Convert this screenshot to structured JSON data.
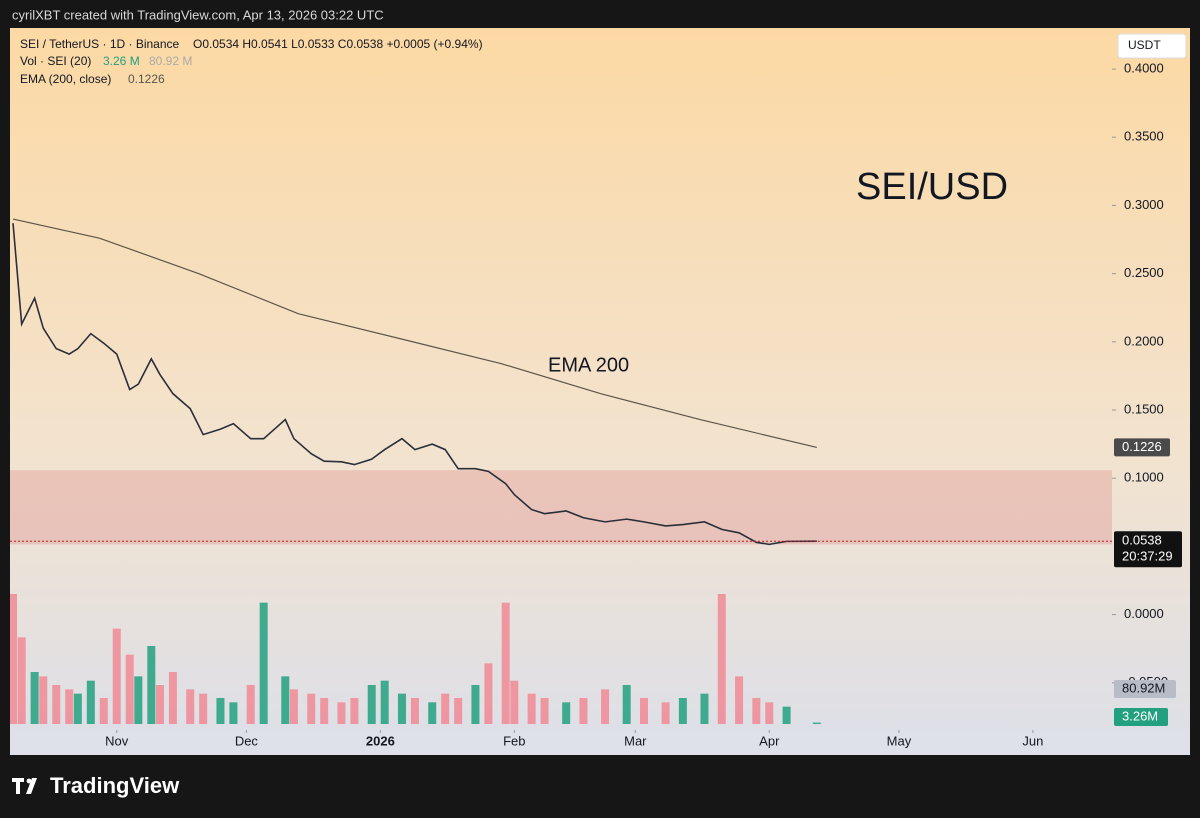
{
  "header": {
    "credit": "cyrilXBT created with TradingView.com, Apr 13, 2026 03:22 UTC",
    "brand": "TradingView"
  },
  "chart_data": {
    "type": "line",
    "legend": {
      "symbol": "SEI / TetherUS · 1D · Binance",
      "ohlc": "O0.0534 H0.0541 L0.0533 C0.0538 +0.0005 (+0.94%)",
      "volume": "Vol · SEI (20)",
      "volume_value": "3.26 M",
      "volume_ma": "80.92 M",
      "ema": "EMA (200, close)"
    },
    "currency": "USDT",
    "countdown": "20:37:29",
    "volume_badge": "3.26M",
    "volume_ma_badge": "80.92M",
    "annotations": [
      "SEI/USD",
      "EMA 200"
    ],
    "zone": [
      0.0515,
      0.1059
    ],
    "x": [
      7,
      9,
      12,
      14,
      17,
      20,
      22,
      25,
      28,
      31,
      34,
      36,
      39,
      41,
      44,
      48,
      51,
      55,
      58,
      62,
      65,
      70,
      72,
      76,
      79,
      83,
      86,
      90,
      93,
      97,
      100,
      104,
      107,
      110,
      114,
      117,
      121,
      123,
      127,
      130,
      135,
      139,
      144,
      149,
      153,
      158,
      162,
      167,
      171,
      175,
      179,
      182,
      186,
      193
    ],
    "series": [
      {
        "name": "SEI / TetherUS",
        "color": "#2a2e39",
        "values": [
          0.287,
          0.213,
          0.232,
          0.21,
          0.195,
          0.191,
          0.195,
          0.206,
          0.199,
          0.191,
          0.165,
          0.169,
          0.1875,
          0.176,
          0.162,
          0.151,
          0.132,
          0.136,
          0.14,
          0.129,
          0.129,
          0.143,
          0.129,
          0.118,
          0.1125,
          0.112,
          0.11,
          0.114,
          0.121,
          0.129,
          0.121,
          0.125,
          0.121,
          0.107,
          0.107,
          0.105,
          0.096,
          0.088,
          0.077,
          0.074,
          0.076,
          0.071,
          0.068,
          0.07,
          0.068,
          0.065,
          0.066,
          0.068,
          0.0625,
          0.06,
          0.053,
          0.0515,
          0.0537,
          0.0538
        ]
      },
      {
        "name": "EMA",
        "color": "#5d5448",
        "x": [
          7,
          27,
          50,
          73,
          97,
          120,
          143,
          166,
          193
        ],
        "values": [
          0.29,
          0.276,
          0.25,
          0.2206,
          0.202,
          0.184,
          0.162,
          0.143,
          0.1226
        ]
      },
      {
        "name": "Vol",
        "axis": "volume",
        "up_color": "#22a07f",
        "down_color": "#f08a95",
        "values": [
          300,
          200,
          120,
          110,
          90,
          80,
          70,
          100,
          60,
          220,
          160,
          110,
          180,
          90,
          120,
          80,
          70,
          60,
          50,
          90,
          280,
          110,
          80,
          70,
          60,
          50,
          60,
          90,
          100,
          70,
          60,
          50,
          70,
          60,
          90,
          140,
          280,
          100,
          70,
          60,
          50,
          60,
          80,
          90,
          60,
          50,
          60,
          70,
          300,
          110,
          60,
          50,
          40,
          3.26
        ]
      }
    ],
    "xlim": [
      6.3,
      261.3
    ],
    "xticks": [
      {
        "value": 31,
        "label": "Nov"
      },
      {
        "value": 61,
        "label": "Dec"
      },
      {
        "value": 92,
        "label": "2026"
      },
      {
        "value": 123,
        "label": "Feb"
      },
      {
        "value": 151,
        "label": "Mar"
      },
      {
        "value": 182,
        "label": "Apr"
      },
      {
        "value": 212,
        "label": "May"
      },
      {
        "value": 243,
        "label": "Jun"
      }
    ],
    "ylim": [
      -0.0846,
      0.4301
    ],
    "yticks": [
      {
        "value": -0.05,
        "label": "-0.0500"
      },
      {
        "value": 0,
        "label": "0.0000"
      },
      {
        "value": 0.1,
        "label": "0.1000"
      },
      {
        "value": 0.15,
        "label": "0.1500"
      },
      {
        "value": 0.2,
        "label": "0.2000"
      },
      {
        "value": 0.25,
        "label": "0.2500"
      },
      {
        "value": 0.3,
        "label": "0.3000"
      },
      {
        "value": 0.35,
        "label": "0.3500"
      },
      {
        "value": 0.4,
        "label": "0.4000"
      }
    ]
  }
}
